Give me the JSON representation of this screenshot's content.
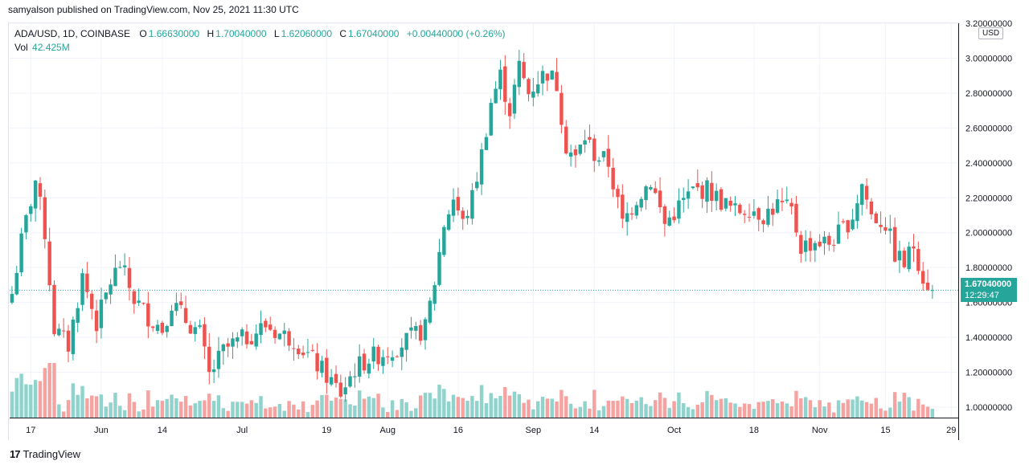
{
  "header": {
    "publisher_line": "samyalson published on TradingView.com, Nov 25, 2021 11:30 UTC"
  },
  "legend": {
    "symbol": "ADA/USD, 1D, COINBASE",
    "open_label": "O",
    "open": "1.66630000",
    "high_label": "H",
    "high": "1.70040000",
    "low_label": "L",
    "low": "1.62060000",
    "close_label": "C",
    "close": "1.67040000",
    "change": "+0.00440000 (+0.26%)",
    "vol_label": "Vol",
    "vol": "42.425M"
  },
  "price_axis": {
    "currency": "USD",
    "last_price": "1.67040000",
    "countdown": "12:29:47"
  },
  "footer": {
    "brand": "TradingView"
  },
  "colors": {
    "up": "#26a69a",
    "down": "#ef5350",
    "up_volume": "#8fd3cc",
    "down_volume": "#f4a3a1",
    "grid": "#f0f3fa"
  },
  "chart_data": {
    "type": "candlestick",
    "symbol": "ADA/USD",
    "interval": "1D",
    "exchange": "COINBASE",
    "y_ticks": [
      1.0,
      1.2,
      1.4,
      1.6,
      1.8,
      2.0,
      2.2,
      2.4,
      2.6,
      2.8,
      3.0,
      3.2
    ],
    "y_tick_labels": [
      "1.00000000",
      "1.20000000",
      "1.40000000",
      "1.60000000",
      "1.80000000",
      "2.00000000",
      "2.20000000",
      "2.40000000",
      "2.60000000",
      "2.80000000",
      "3.00000000",
      "3.20000000"
    ],
    "ylim": [
      0.94,
      3.2
    ],
    "x_labels": [
      {
        "label": "17",
        "index": 4
      },
      {
        "label": "Jun",
        "index": 19
      },
      {
        "label": "14",
        "index": 32
      },
      {
        "label": "Jul",
        "index": 49
      },
      {
        "label": "19",
        "index": 67
      },
      {
        "label": "Aug",
        "index": 80
      },
      {
        "label": "16",
        "index": 95
      },
      {
        "label": "Sep",
        "index": 111
      },
      {
        "label": "14",
        "index": 124
      },
      {
        "label": "Oct",
        "index": 141
      },
      {
        "label": "18",
        "index": 158
      },
      {
        "label": "Nov",
        "index": 172
      },
      {
        "label": "15",
        "index": 186
      },
      {
        "label": "29",
        "index": 200
      }
    ],
    "last_price": 1.6704,
    "anchors": [
      {
        "i": 0,
        "c": 1.65
      },
      {
        "i": 2,
        "c": 1.95
      },
      {
        "i": 5,
        "c": 2.3
      },
      {
        "i": 7,
        "c": 2.0
      },
      {
        "i": 9,
        "c": 1.45
      },
      {
        "i": 12,
        "c": 1.35
      },
      {
        "i": 15,
        "c": 1.75
      },
      {
        "i": 18,
        "c": 1.48
      },
      {
        "i": 21,
        "c": 1.72
      },
      {
        "i": 23,
        "c": 1.82
      },
      {
        "i": 26,
        "c": 1.62
      },
      {
        "i": 29,
        "c": 1.52
      },
      {
        "i": 32,
        "c": 1.45
      },
      {
        "i": 34,
        "c": 1.6
      },
      {
        "i": 37,
        "c": 1.5
      },
      {
        "i": 40,
        "c": 1.42
      },
      {
        "i": 42,
        "c": 1.18
      },
      {
        "i": 45,
        "c": 1.32
      },
      {
        "i": 47,
        "c": 1.36
      },
      {
        "i": 50,
        "c": 1.4
      },
      {
        "i": 54,
        "c": 1.47
      },
      {
        "i": 57,
        "c": 1.42
      },
      {
        "i": 60,
        "c": 1.39
      },
      {
        "i": 63,
        "c": 1.3
      },
      {
        "i": 67,
        "c": 1.18
      },
      {
        "i": 70,
        "c": 1.08
      },
      {
        "i": 73,
        "c": 1.22
      },
      {
        "i": 76,
        "c": 1.28
      },
      {
        "i": 80,
        "c": 1.32
      },
      {
        "i": 84,
        "c": 1.38
      },
      {
        "i": 88,
        "c": 1.45
      },
      {
        "i": 90,
        "c": 1.72
      },
      {
        "i": 92,
        "c": 2.05
      },
      {
        "i": 94,
        "c": 2.2
      },
      {
        "i": 96,
        "c": 2.05
      },
      {
        "i": 98,
        "c": 2.2
      },
      {
        "i": 100,
        "c": 2.45
      },
      {
        "i": 102,
        "c": 2.75
      },
      {
        "i": 104,
        "c": 2.9
      },
      {
        "i": 106,
        "c": 2.7
      },
      {
        "i": 108,
        "c": 2.95
      },
      {
        "i": 110,
        "c": 2.8
      },
      {
        "i": 112,
        "c": 2.88
      },
      {
        "i": 114,
        "c": 2.92
      },
      {
        "i": 116,
        "c": 2.85
      },
      {
        "i": 118,
        "c": 2.5
      },
      {
        "i": 120,
        "c": 2.42
      },
      {
        "i": 122,
        "c": 2.55
      },
      {
        "i": 124,
        "c": 2.45
      },
      {
        "i": 127,
        "c": 2.4
      },
      {
        "i": 130,
        "c": 2.05
      },
      {
        "i": 133,
        "c": 2.2
      },
      {
        "i": 136,
        "c": 2.3
      },
      {
        "i": 139,
        "c": 2.05
      },
      {
        "i": 142,
        "c": 2.15
      },
      {
        "i": 145,
        "c": 2.24
      },
      {
        "i": 148,
        "c": 2.25
      },
      {
        "i": 151,
        "c": 2.18
      },
      {
        "i": 154,
        "c": 2.12
      },
      {
        "i": 157,
        "c": 2.15
      },
      {
        "i": 160,
        "c": 2.1
      },
      {
        "i": 163,
        "c": 2.16
      },
      {
        "i": 166,
        "c": 2.12
      },
      {
        "i": 168,
        "c": 1.92
      },
      {
        "i": 171,
        "c": 1.95
      },
      {
        "i": 174,
        "c": 1.94
      },
      {
        "i": 177,
        "c": 2.02
      },
      {
        "i": 179,
        "c": 2.1
      },
      {
        "i": 181,
        "c": 2.28
      },
      {
        "i": 183,
        "c": 2.1
      },
      {
        "i": 186,
        "c": 2.05
      },
      {
        "i": 188,
        "c": 1.88
      },
      {
        "i": 190,
        "c": 1.82
      },
      {
        "i": 192,
        "c": 1.93
      },
      {
        "i": 194,
        "c": 1.75
      },
      {
        "i": 196,
        "c": 1.67
      }
    ]
  }
}
